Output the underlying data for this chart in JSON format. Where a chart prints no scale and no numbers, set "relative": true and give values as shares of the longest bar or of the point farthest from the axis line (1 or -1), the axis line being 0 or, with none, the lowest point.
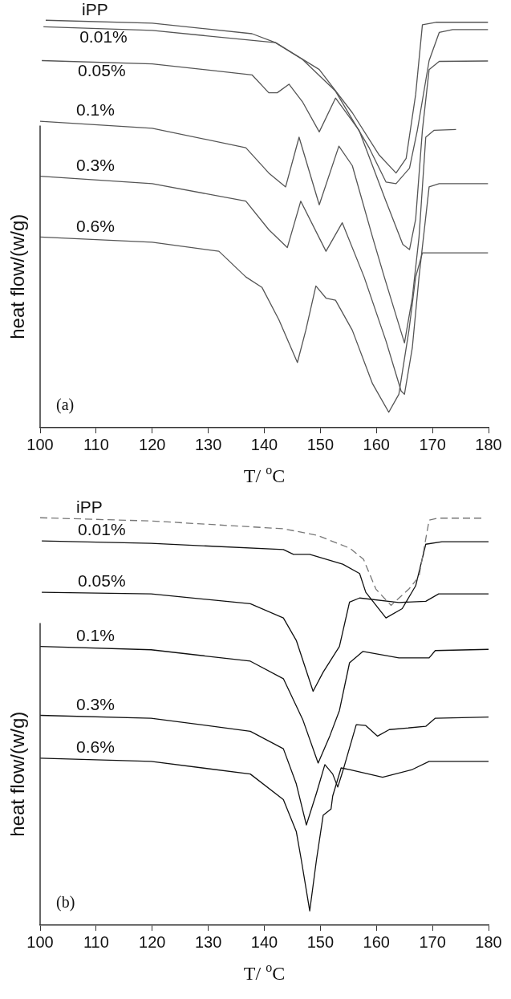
{
  "chart_data": [
    {
      "type": "line",
      "relative": true,
      "xlabel": "T/ $^{o}$C",
      "ylabel": "heat flow/(w/g)",
      "xlim": [
        100,
        180
      ],
      "xticks": [
        100,
        110,
        120,
        130,
        140,
        150,
        160,
        170,
        180
      ],
      "marker": "none",
      "annotations": [
        "(a)"
      ],
      "series": [
        {
          "name": "iPP",
          "color": "#555555",
          "x": [
            101,
            120,
            137.8,
            142,
            149.8,
            155.7,
            160.5,
            163.5,
            165.3,
            167,
            168.2,
            170.6,
            179.9
          ],
          "values": [
            1.0,
            0.993,
            0.967,
            0.945,
            0.879,
            0.773,
            0.669,
            0.625,
            0.661,
            0.818,
            0.989,
            0.995,
            0.995
          ]
        },
        {
          "name": "0.01%",
          "color": "#555555",
          "x": [
            100.6,
            120,
            142,
            146.8,
            152.7,
            158.7,
            161.7,
            163.5,
            165.9,
            167.3,
            169.4,
            171.2,
            173.6,
            179.9
          ],
          "values": [
            0.984,
            0.975,
            0.945,
            0.904,
            0.826,
            0.687,
            0.603,
            0.599,
            0.637,
            0.73,
            0.901,
            0.97,
            0.977,
            0.977
          ]
        },
        {
          "name": "0.05%",
          "color": "#555555",
          "x": [
            100.3,
            120,
            137.8,
            140.8,
            142.3,
            144.4,
            146.8,
            149.8,
            152.7,
            156.9,
            161.7,
            164.7,
            165.9,
            167,
            168.2,
            169.4,
            171.2,
            179.9
          ],
          "values": [
            0.901,
            0.893,
            0.866,
            0.822,
            0.822,
            0.843,
            0.8,
            0.726,
            0.809,
            0.73,
            0.556,
            0.45,
            0.437,
            0.512,
            0.73,
            0.879,
            0.899,
            0.9
          ]
        },
        {
          "name": "0.1%",
          "color": "#555555",
          "x": [
            100,
            120,
            136.7,
            140.8,
            143.8,
            146.2,
            149.8,
            153.3,
            155.7,
            159.3,
            161.4,
            165,
            166.4,
            167.6,
            168.8,
            170.3,
            174.2
          ],
          "values": [
            0.752,
            0.735,
            0.687,
            0.625,
            0.591,
            0.713,
            0.547,
            0.691,
            0.643,
            0.468,
            0.37,
            0.208,
            0.319,
            0.468,
            0.713,
            0.73,
            0.732
          ]
        },
        {
          "name": "0.3%",
          "color": "#555555",
          "x": [
            100,
            120,
            136.7,
            140.8,
            144.1,
            146.5,
            151,
            153.9,
            157.8,
            161.7,
            164.4,
            165,
            166.4,
            167.6,
            169.4,
            171.2,
            179.9
          ],
          "values": [
            0.617,
            0.599,
            0.556,
            0.486,
            0.442,
            0.556,
            0.433,
            0.503,
            0.37,
            0.213,
            0.09,
            0.082,
            0.196,
            0.37,
            0.591,
            0.599,
            0.599
          ]
        },
        {
          "name": "0.6%",
          "color": "#555555",
          "x": [
            100,
            120,
            131.9,
            136.7,
            139.6,
            142.6,
            145.9,
            147.4,
            149.2,
            151,
            152.7,
            155.7,
            159.3,
            162.2,
            164,
            165.8,
            167,
            168.2,
            173.6,
            179.9
          ],
          "values": [
            0.468,
            0.455,
            0.433,
            0.37,
            0.344,
            0.265,
            0.16,
            0.239,
            0.348,
            0.318,
            0.313,
            0.239,
            0.108,
            0.038,
            0.082,
            0.239,
            0.37,
            0.429,
            0.429,
            0.429
          ]
        }
      ]
    },
    {
      "type": "line",
      "relative": true,
      "xlabel": "T/ $^{o}$C",
      "ylabel": "heat flow/(w/g)",
      "xlim": [
        100,
        180
      ],
      "xticks": [
        100,
        110,
        120,
        130,
        140,
        150,
        160,
        170,
        180
      ],
      "marker": "none",
      "annotations": [
        "(b)"
      ],
      "series": [
        {
          "name": "iPP",
          "color": "#777777",
          "line_style": "dashed",
          "x": [
            100,
            120,
            143.4,
            149.4,
            155.3,
            157.7,
            159.9,
            162.6,
            165.8,
            167.6,
            169.4,
            171,
            179.1
          ],
          "values": [
            1.0,
            0.992,
            0.973,
            0.957,
            0.925,
            0.898,
            0.825,
            0.785,
            0.825,
            0.856,
            0.994,
            0.999,
            0.999
          ]
        },
        {
          "name": "0.01%",
          "color": "#111111",
          "x": [
            100.3,
            119.8,
            143.4,
            145.2,
            148.1,
            154,
            157,
            158.1,
            161.7,
            164.6,
            167,
            168.8,
            171.7,
            180
          ],
          "values": [
            0.943,
            0.937,
            0.922,
            0.91,
            0.91,
            0.886,
            0.863,
            0.817,
            0.754,
            0.777,
            0.833,
            0.935,
            0.941,
            0.941
          ]
        },
        {
          "name": "0.05%",
          "color": "#111111",
          "x": [
            100.3,
            119.8,
            137.5,
            143.4,
            145.7,
            148.7,
            150.5,
            153.4,
            155.2,
            157,
            164,
            168.8,
            171.1,
            180
          ],
          "values": [
            0.817,
            0.813,
            0.789,
            0.754,
            0.699,
            0.574,
            0.621,
            0.684,
            0.793,
            0.803,
            0.792,
            0.795,
            0.813,
            0.813
          ]
        },
        {
          "name": "0.1%",
          "color": "#111111",
          "x": [
            100,
            119.8,
            137.5,
            143.4,
            146.9,
            149.6,
            151.7,
            153.4,
            155.2,
            157.6,
            164,
            169.4,
            170.5,
            180
          ],
          "values": [
            0.684,
            0.676,
            0.648,
            0.605,
            0.503,
            0.398,
            0.465,
            0.527,
            0.644,
            0.672,
            0.656,
            0.656,
            0.674,
            0.677
          ]
        },
        {
          "name": "0.3%",
          "color": "#111111",
          "x": [
            100,
            119.8,
            137.5,
            143.4,
            145.7,
            147.5,
            149.3,
            150.8,
            152.2,
            153.1,
            154,
            156.4,
            158.1,
            160.2,
            162.3,
            168.8,
            170.5,
            180
          ],
          "values": [
            0.515,
            0.508,
            0.476,
            0.433,
            0.347,
            0.246,
            0.324,
            0.394,
            0.371,
            0.339,
            0.378,
            0.492,
            0.49,
            0.464,
            0.48,
            0.488,
            0.508,
            0.511
          ]
        },
        {
          "name": "0.6%",
          "color": "#111111",
          "x": [
            100,
            119.8,
            137.5,
            143.4,
            145.7,
            146.6,
            148.1,
            149.3,
            150.5,
            151.9,
            152.2,
            153.7,
            155.2,
            161.1,
            166.4,
            169.4,
            180
          ],
          "values": [
            0.41,
            0.402,
            0.371,
            0.308,
            0.23,
            0.16,
            0.035,
            0.16,
            0.27,
            0.285,
            0.317,
            0.386,
            0.382,
            0.363,
            0.382,
            0.402,
            0.402
          ]
        }
      ]
    }
  ]
}
